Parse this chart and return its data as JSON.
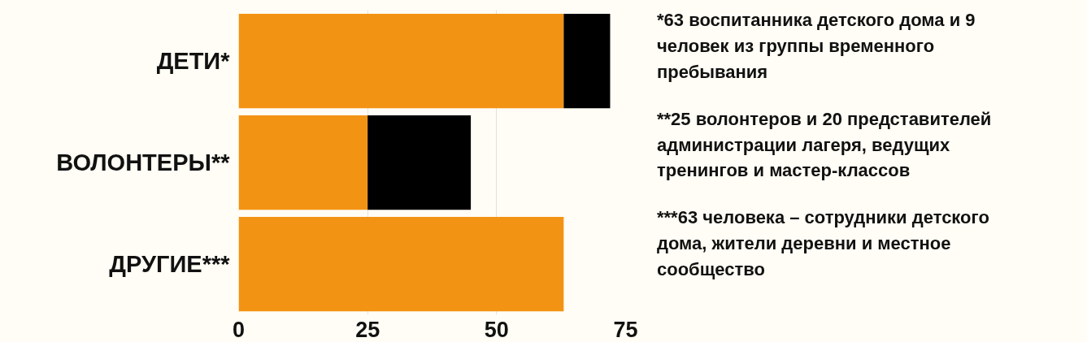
{
  "chart_data": {
    "type": "bar",
    "orientation": "horizontal",
    "stacked": true,
    "categories": [
      "ДЕТИ*",
      "ВОЛОНТЕРЫ**",
      "ДРУГИЕ***"
    ],
    "series": [
      {
        "color": "#f39313",
        "values": [
          63,
          25,
          63
        ]
      },
      {
        "color": "#000000",
        "values": [
          9,
          20,
          null
        ]
      }
    ],
    "xlim": [
      0,
      75
    ],
    "xticks": [
      0,
      25,
      50,
      75
    ],
    "grid": "x",
    "annotations": [
      "*63 воспитанника детского дома и 9 человек из группы временного пребывания",
      "**25 волонтеров и 20 представителей администрации лагеря, ведущих тренингов и мастер-классов",
      "***63 человека – сотрудники детского дома, жители деревни и местное сообщество"
    ]
  }
}
